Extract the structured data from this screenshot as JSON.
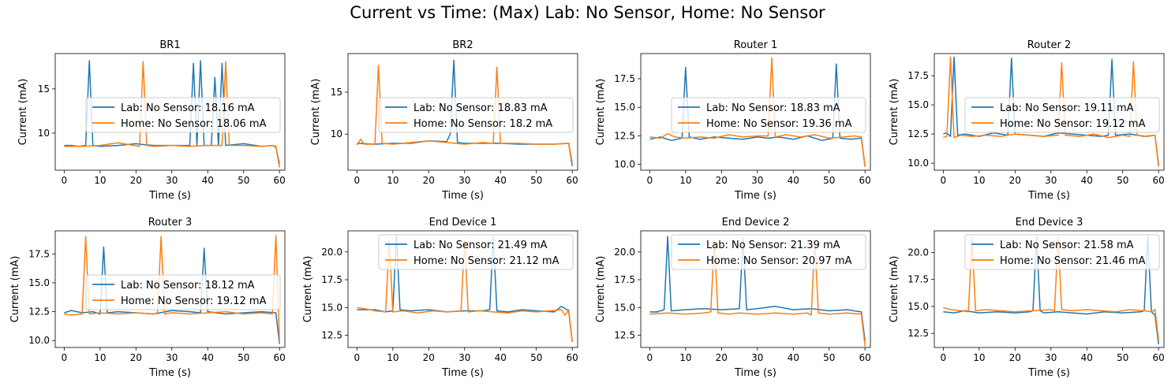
{
  "figure_title": "Current vs Time: (Max) Lab: No Sensor, Home: No Sensor",
  "colors": {
    "lab": "#1f77b4",
    "home": "#ff7f0e"
  },
  "chart_data": [
    {
      "type": "line",
      "title": "BR1",
      "xlabel": "Time (s)",
      "ylabel": "Current (mA)",
      "xlim": [
        -2.5,
        61.5
      ],
      "ylim": [
        5.8,
        19.0
      ],
      "xticks": [
        "0",
        "10",
        "20",
        "30",
        "40",
        "50",
        "60"
      ],
      "yticks": [
        "10",
        "15"
      ],
      "yticks_v": [
        10,
        15
      ],
      "legend_loc": "center-right",
      "series": [
        {
          "name": "Lab: No Sensor: 18.16 mA",
          "color": "#1f77b4",
          "x": [
            0,
            2,
            4,
            6,
            7,
            8,
            10,
            15,
            20,
            22,
            25,
            30,
            35,
            36,
            37,
            38,
            39,
            40,
            41,
            42,
            43,
            44,
            45,
            50,
            55,
            58,
            59,
            60
          ],
          "y": [
            8.6,
            8.6,
            8.5,
            8.6,
            18.2,
            8.6,
            8.5,
            8.6,
            8.8,
            8.7,
            8.6,
            8.6,
            8.6,
            17.9,
            8.6,
            18.2,
            8.6,
            8.6,
            8.6,
            16.3,
            8.6,
            17.9,
            8.6,
            8.8,
            8.5,
            8.6,
            8.4,
            6.5
          ]
        },
        {
          "name": "Home: No Sensor: 18.06 mA",
          "color": "#ff7f0e",
          "x": [
            0,
            5,
            10,
            15,
            18,
            21,
            22,
            23,
            25,
            30,
            35,
            40,
            44,
            45,
            46,
            50,
            55,
            58,
            59,
            60
          ],
          "y": [
            8.5,
            8.5,
            8.6,
            8.9,
            8.7,
            8.5,
            18.1,
            8.6,
            8.5,
            8.6,
            8.5,
            8.6,
            8.6,
            18.1,
            8.6,
            8.6,
            8.5,
            8.6,
            8.5,
            6.1
          ]
        }
      ]
    },
    {
      "type": "line",
      "title": "BR2",
      "xlabel": "Time (s)",
      "ylabel": "Current (mA)",
      "xlim": [
        -2.5,
        61.5
      ],
      "ylim": [
        5.7,
        19.6
      ],
      "xticks": [
        "0",
        "10",
        "20",
        "30",
        "40",
        "50",
        "60"
      ],
      "yticks": [
        "10",
        "15"
      ],
      "yticks_v": [
        10,
        15
      ],
      "legend_loc": "center-right",
      "series": [
        {
          "name": "Lab: No Sensor: 18.83 mA",
          "color": "#1f77b4",
          "x": [
            0,
            5,
            10,
            15,
            20,
            25,
            26,
            27,
            28,
            30,
            35,
            40,
            45,
            50,
            55,
            59,
            60
          ],
          "y": [
            8.9,
            8.8,
            8.9,
            8.9,
            9.2,
            9.1,
            10.0,
            18.8,
            9.0,
            8.9,
            8.9,
            8.9,
            8.8,
            8.8,
            8.8,
            8.9,
            6.2
          ]
        },
        {
          "name": "Home: No Sensor: 18.2 mA",
          "color": "#ff7f0e",
          "x": [
            0,
            1,
            2,
            5,
            6,
            7,
            10,
            15,
            20,
            25,
            30,
            35,
            38,
            39,
            40,
            45,
            50,
            55,
            59,
            60
          ],
          "y": [
            8.7,
            9.4,
            8.8,
            8.8,
            18.2,
            8.9,
            8.8,
            9.0,
            9.2,
            9.0,
            8.8,
            9.0,
            8.9,
            18.0,
            8.9,
            8.9,
            8.8,
            8.8,
            8.9,
            6.6
          ]
        }
      ]
    },
    {
      "type": "line",
      "title": "Router 1",
      "xlabel": "Time (s)",
      "ylabel": "Current (mA)",
      "xlim": [
        -2.5,
        61.5
      ],
      "ylim": [
        9.5,
        19.7
      ],
      "xticks": [
        "0",
        "10",
        "20",
        "30",
        "40",
        "50",
        "60"
      ],
      "yticks": [
        "10.0",
        "12.5",
        "15.0",
        "17.5"
      ],
      "yticks_v": [
        10,
        12.5,
        15,
        17.5
      ],
      "legend_loc": "center-right",
      "series": [
        {
          "name": "Lab: No Sensor: 18.83 mA",
          "color": "#1f77b4",
          "x": [
            0,
            3,
            6,
            9,
            10,
            11,
            14,
            18,
            22,
            26,
            30,
            33,
            36,
            40,
            44,
            48,
            51,
            52,
            53,
            56,
            59,
            60
          ],
          "y": [
            12.2,
            12.4,
            12.1,
            12.3,
            18.5,
            12.4,
            12.2,
            12.4,
            12.3,
            12.2,
            12.4,
            12.3,
            12.4,
            12.2,
            12.5,
            12.1,
            12.3,
            18.8,
            12.3,
            12.2,
            12.3,
            9.8
          ]
        },
        {
          "name": "Home: No Sensor: 19.36 mA",
          "color": "#ff7f0e",
          "x": [
            0,
            3,
            5,
            7,
            10,
            14,
            18,
            22,
            26,
            30,
            33,
            34,
            35,
            38,
            42,
            46,
            50,
            54,
            57,
            59,
            60
          ],
          "y": [
            12.4,
            12.3,
            12.7,
            12.4,
            12.3,
            12.4,
            12.3,
            12.6,
            12.4,
            12.5,
            12.5,
            19.3,
            12.4,
            12.6,
            12.4,
            12.6,
            12.3,
            12.4,
            12.5,
            12.4,
            9.8
          ]
        }
      ]
    },
    {
      "type": "line",
      "title": "Router 2",
      "xlabel": "Time (s)",
      "ylabel": "Current (mA)",
      "xlim": [
        -2.5,
        61.5
      ],
      "ylim": [
        9.4,
        19.4
      ],
      "xticks": [
        "0",
        "10",
        "20",
        "30",
        "40",
        "50",
        "60"
      ],
      "yticks": [
        "10.0",
        "12.5",
        "15.0",
        "17.5"
      ],
      "yticks_v": [
        10,
        12.5,
        15,
        17.5
      ],
      "legend_loc": "center-right",
      "series": [
        {
          "name": "Lab: No Sensor: 19.11 mA",
          "color": "#1f77b4",
          "x": [
            0,
            1,
            2,
            3,
            4,
            6,
            10,
            14,
            18,
            19,
            20,
            24,
            28,
            32,
            36,
            40,
            44,
            46,
            47,
            48,
            52,
            56,
            59,
            60
          ],
          "y": [
            12.5,
            12.6,
            12.3,
            19.1,
            12.4,
            12.5,
            12.3,
            12.6,
            12.4,
            19.0,
            12.5,
            12.4,
            12.3,
            12.6,
            12.5,
            12.4,
            12.3,
            12.4,
            18.9,
            12.4,
            12.5,
            12.3,
            12.4,
            9.9
          ]
        },
        {
          "name": "Home: No Sensor: 19.12 mA",
          "color": "#ff7f0e",
          "x": [
            0,
            1,
            2,
            3,
            5,
            8,
            12,
            16,
            20,
            24,
            28,
            32,
            33,
            34,
            38,
            42,
            46,
            50,
            52,
            53,
            54,
            57,
            59,
            60
          ],
          "y": [
            12.2,
            12.3,
            19.1,
            12.2,
            12.4,
            12.3,
            12.4,
            12.3,
            12.5,
            12.4,
            12.3,
            12.4,
            18.6,
            12.4,
            12.3,
            12.5,
            12.2,
            12.4,
            12.3,
            18.7,
            12.4,
            12.3,
            12.4,
            9.7
          ]
        }
      ]
    },
    {
      "type": "line",
      "title": "Router 3",
      "xlabel": "Time (s)",
      "ylabel": "Current (mA)",
      "xlim": [
        -2.5,
        61.5
      ],
      "ylim": [
        9.4,
        19.5
      ],
      "xticks": [
        "0",
        "10",
        "20",
        "30",
        "40",
        "50",
        "60"
      ],
      "yticks": [
        "10.0",
        "12.5",
        "15.0",
        "17.5"
      ],
      "yticks_v": [
        10,
        12.5,
        15,
        17.5
      ],
      "legend_loc": "center-right",
      "series": [
        {
          "name": "Lab: No Sensor: 18.12 mA",
          "color": "#1f77b4",
          "x": [
            0,
            2,
            5,
            8,
            10,
            11,
            12,
            15,
            20,
            25,
            30,
            35,
            38,
            39,
            40,
            45,
            50,
            55,
            59,
            60
          ],
          "y": [
            12.4,
            12.6,
            12.4,
            12.5,
            12.3,
            18.1,
            12.4,
            12.5,
            12.4,
            12.3,
            12.6,
            12.5,
            12.4,
            18.0,
            12.5,
            12.3,
            12.4,
            12.5,
            12.4,
            9.7
          ]
        },
        {
          "name": "Home: No Sensor: 19.12 mA",
          "color": "#ff7f0e",
          "x": [
            0,
            2,
            5,
            6,
            7,
            10,
            15,
            20,
            25,
            26,
            27,
            28,
            30,
            35,
            40,
            45,
            50,
            55,
            58,
            59,
            60
          ],
          "y": [
            12.3,
            12.2,
            12.3,
            19.0,
            12.3,
            12.4,
            12.3,
            12.4,
            12.3,
            12.4,
            19.0,
            12.3,
            12.4,
            12.3,
            12.4,
            12.5,
            12.3,
            12.4,
            12.3,
            19.1,
            9.8
          ]
        }
      ]
    },
    {
      "type": "line",
      "title": "End Device 1",
      "xlabel": "Time (s)",
      "ylabel": "Current (mA)",
      "xlim": [
        -2.5,
        61.5
      ],
      "ylim": [
        11.4,
        21.9
      ],
      "xticks": [
        "0",
        "10",
        "20",
        "30",
        "40",
        "50",
        "60"
      ],
      "yticks": [
        "12.5",
        "15.0",
        "17.5",
        "20.0"
      ],
      "yticks_v": [
        12.5,
        15,
        17.5,
        20
      ],
      "legend_loc": "upper-right",
      "series": [
        {
          "name": "Lab: No Sensor: 21.49 mA",
          "color": "#1f77b4",
          "x": [
            0,
            5,
            8,
            10,
            11,
            12,
            15,
            20,
            25,
            30,
            35,
            37,
            38,
            39,
            42,
            46,
            50,
            55,
            57,
            59,
            60
          ],
          "y": [
            14.8,
            14.8,
            14.6,
            14.7,
            21.5,
            14.8,
            14.7,
            14.8,
            14.6,
            14.7,
            14.7,
            14.8,
            21.4,
            14.7,
            14.6,
            14.8,
            14.7,
            14.6,
            15.1,
            14.7,
            11.9
          ]
        },
        {
          "name": "Home: No Sensor: 21.12 mA",
          "color": "#ff7f0e",
          "x": [
            0,
            2,
            5,
            8,
            9,
            10,
            13,
            17,
            21,
            25,
            29,
            30,
            31,
            34,
            38,
            42,
            46,
            50,
            54,
            57,
            58,
            59,
            60
          ],
          "y": [
            15.0,
            14.9,
            14.7,
            14.6,
            21.1,
            14.6,
            14.7,
            14.5,
            14.7,
            14.6,
            14.7,
            21.1,
            14.6,
            14.7,
            14.6,
            14.5,
            14.7,
            14.6,
            14.7,
            14.8,
            14.3,
            14.8,
            11.9
          ]
        }
      ]
    },
    {
      "type": "line",
      "title": "End Device 2",
      "xlabel": "Time (s)",
      "ylabel": "Current (mA)",
      "xlim": [
        -2.5,
        61.5
      ],
      "ylim": [
        11.4,
        21.9
      ],
      "xticks": [
        "0",
        "10",
        "20",
        "30",
        "40",
        "50",
        "60"
      ],
      "yticks": [
        "12.5",
        "15.0",
        "17.5",
        "20.0"
      ],
      "yticks_v": [
        12.5,
        15,
        17.5,
        20
      ],
      "legend_loc": "upper-right",
      "series": [
        {
          "name": "Lab: No Sensor: 21.39 mA",
          "color": "#1f77b4",
          "x": [
            0,
            2,
            4,
            5,
            6,
            10,
            15,
            20,
            25,
            26,
            27,
            30,
            35,
            40,
            45,
            50,
            55,
            59,
            60
          ],
          "y": [
            14.6,
            14.6,
            14.8,
            21.4,
            14.7,
            14.8,
            14.9,
            14.8,
            14.9,
            21.3,
            14.8,
            14.9,
            15.1,
            14.8,
            14.9,
            14.7,
            14.8,
            14.6,
            12.0
          ]
        },
        {
          "name": "Home: No Sensor: 20.97 mA",
          "color": "#ff7f0e",
          "x": [
            0,
            5,
            10,
            15,
            17,
            18,
            19,
            22,
            25,
            30,
            35,
            40,
            44,
            45,
            46,
            47,
            50,
            55,
            59,
            60
          ],
          "y": [
            14.4,
            14.5,
            14.4,
            14.5,
            14.6,
            21.0,
            14.5,
            14.4,
            14.5,
            14.4,
            14.5,
            14.4,
            14.5,
            14.3,
            21.0,
            14.5,
            14.4,
            14.5,
            14.4,
            11.5
          ]
        }
      ]
    },
    {
      "type": "line",
      "title": "End Device 3",
      "xlabel": "Time (s)",
      "ylabel": "Current (mA)",
      "xlim": [
        -2.5,
        61.5
      ],
      "ylim": [
        11.2,
        22.0
      ],
      "xticks": [
        "0",
        "10",
        "20",
        "30",
        "40",
        "50",
        "60"
      ],
      "yticks": [
        "12.5",
        "15.0",
        "17.5",
        "20.0"
      ],
      "yticks_v": [
        12.5,
        15,
        17.5,
        20
      ],
      "legend_loc": "upper-right",
      "series": [
        {
          "name": "Lab: No Sensor: 21.58 mA",
          "color": "#1f77b4",
          "x": [
            0,
            3,
            6,
            10,
            15,
            20,
            24,
            25,
            26,
            27,
            28,
            32,
            36,
            40,
            45,
            50,
            55,
            56,
            57,
            58,
            59,
            60
          ],
          "y": [
            14.5,
            14.4,
            14.6,
            14.4,
            14.5,
            14.4,
            14.5,
            14.6,
            21.5,
            14.6,
            14.4,
            14.5,
            14.4,
            14.3,
            14.5,
            14.4,
            14.5,
            14.6,
            21.6,
            14.5,
            14.2,
            11.5
          ]
        },
        {
          "name": "Home: No Sensor: 21.46 mA",
          "color": "#ff7f0e",
          "x": [
            0,
            2,
            5,
            7,
            8,
            9,
            12,
            16,
            20,
            25,
            30,
            31,
            32,
            33,
            36,
            40,
            44,
            48,
            52,
            56,
            58,
            59,
            60
          ],
          "y": [
            14.9,
            14.7,
            14.6,
            14.5,
            21.4,
            14.6,
            14.7,
            14.6,
            14.5,
            14.6,
            14.7,
            14.6,
            21.5,
            14.7,
            14.6,
            14.7,
            14.6,
            14.5,
            14.7,
            14.6,
            14.5,
            14.7,
            11.9
          ]
        }
      ]
    }
  ]
}
